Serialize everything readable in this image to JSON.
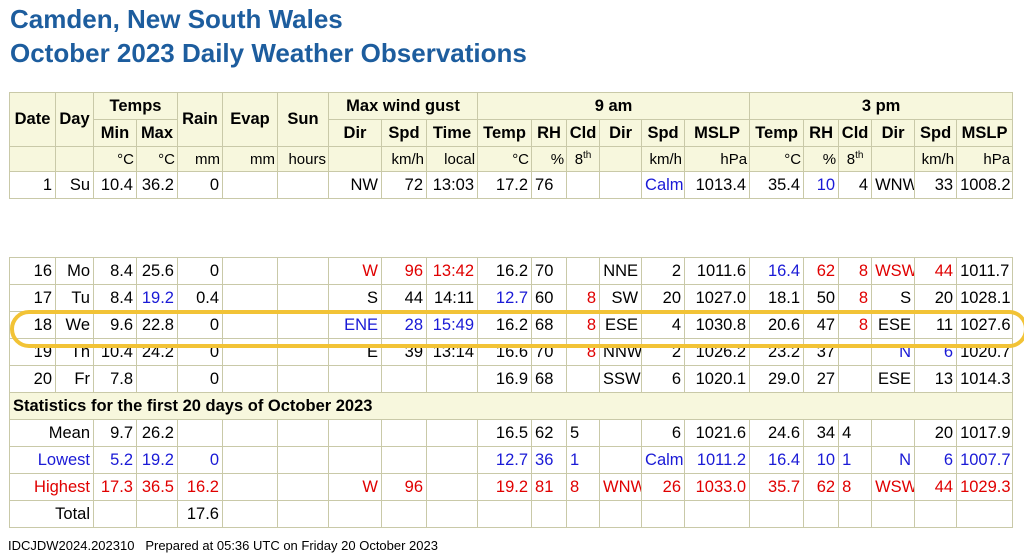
{
  "header": {
    "title_line1": "Camden, New South Wales",
    "title_line2": "October 2023 Daily Weather Observations"
  },
  "table": {
    "group_headers": [
      "Temps",
      "Rain",
      "Evap",
      "Sun",
      "Max wind gust",
      "9 am",
      "3 pm"
    ],
    "col_labels": {
      "date": "Date",
      "day": "Day",
      "min": "Min",
      "max": "Max",
      "dir": "Dir",
      "spd": "Spd",
      "time": "Time",
      "am_temp": "Temp",
      "am_rh": "RH",
      "am_cld": "Cld",
      "am_dir": "Dir",
      "am_spd": "Spd",
      "am_mslp": "MSLP",
      "pm_temp": "Temp",
      "pm_rh": "RH",
      "pm_cld": "Cld",
      "pm_dir": "Dir",
      "pm_spd": "Spd",
      "pm_mslp": "MSLP"
    },
    "units": {
      "min": "°C",
      "max": "°C",
      "rain": "mm",
      "evap": "mm",
      "sun": "hours",
      "gust_spd": "km/h",
      "gust_time": "local",
      "am_temp": "°C",
      "am_rh": "%",
      "am_cld": "8",
      "am_cld_sup": "th",
      "am_spd": "km/h",
      "am_mslp": "hPa",
      "pm_temp": "°C",
      "pm_rh": "%",
      "pm_cld": "8",
      "pm_cld_sup": "th",
      "pm_spd": "km/h",
      "pm_mslp": "hPa"
    },
    "rows": [
      {
        "date": "1",
        "day": "Su",
        "min": "10.4",
        "max": "36.2",
        "rain": "0",
        "evap": "",
        "sun": "",
        "gust_dir": "NW",
        "gust_spd": "72",
        "gust_time": "13:03",
        "am_temp": "17.2",
        "am_rh": "76",
        "am_cld": "",
        "am_dir": "",
        "am_spd": "Calm",
        "am_mslp": "1013.4",
        "pm_temp": "35.4",
        "pm_rh": "10",
        "pm_cld": "4",
        "pm_dir": "WNW",
        "pm_spd": "33",
        "pm_mslp": "1008.2"
      },
      {
        "date": "16",
        "day": "Mo",
        "min": "8.4",
        "max": "25.6",
        "rain": "0",
        "evap": "",
        "sun": "",
        "gust_dir": "W",
        "gust_spd": "96",
        "gust_time": "13:42",
        "am_temp": "16.2",
        "am_rh": "70",
        "am_cld": "",
        "am_dir": "NNE",
        "am_spd": "2",
        "am_mslp": "1011.6",
        "pm_temp": "16.4",
        "pm_rh": "62",
        "pm_cld": "8",
        "pm_dir": "WSW",
        "pm_spd": "44",
        "pm_mslp": "1011.7"
      },
      {
        "date": "17",
        "day": "Tu",
        "min": "8.4",
        "max": "19.2",
        "rain": "0.4",
        "evap": "",
        "sun": "",
        "gust_dir": "S",
        "gust_spd": "44",
        "gust_time": "14:11",
        "am_temp": "12.7",
        "am_rh": "60",
        "am_cld": "8",
        "am_dir": "SW",
        "am_spd": "20",
        "am_mslp": "1027.0",
        "pm_temp": "18.1",
        "pm_rh": "50",
        "pm_cld": "8",
        "pm_dir": "S",
        "pm_spd": "20",
        "pm_mslp": "1028.1"
      },
      {
        "date": "18",
        "day": "We",
        "min": "9.6",
        "max": "22.8",
        "rain": "0",
        "evap": "",
        "sun": "",
        "gust_dir": "ENE",
        "gust_spd": "28",
        "gust_time": "15:49",
        "am_temp": "16.2",
        "am_rh": "68",
        "am_cld": "8",
        "am_dir": "ESE",
        "am_spd": "4",
        "am_mslp": "1030.8",
        "pm_temp": "20.6",
        "pm_rh": "47",
        "pm_cld": "8",
        "pm_dir": "ESE",
        "pm_spd": "11",
        "pm_mslp": "1027.6"
      },
      {
        "date": "19",
        "day": "Th",
        "min": "10.4",
        "max": "24.2",
        "rain": "0",
        "evap": "",
        "sun": "",
        "gust_dir": "E",
        "gust_spd": "39",
        "gust_time": "13:14",
        "am_temp": "16.6",
        "am_rh": "70",
        "am_cld": "8",
        "am_dir": "NNW",
        "am_spd": "2",
        "am_mslp": "1026.2",
        "pm_temp": "23.2",
        "pm_rh": "37",
        "pm_cld": "",
        "pm_dir": "N",
        "pm_spd": "6",
        "pm_mslp": "1020.7"
      },
      {
        "date": "20",
        "day": "Fr",
        "min": "7.8",
        "max": "",
        "rain": "0",
        "evap": "",
        "sun": "",
        "gust_dir": "",
        "gust_spd": "",
        "gust_time": "",
        "am_temp": "16.9",
        "am_rh": "68",
        "am_cld": "",
        "am_dir": "SSW",
        "am_spd": "6",
        "am_mslp": "1020.1",
        "pm_temp": "29.0",
        "pm_rh": "27",
        "pm_cld": "",
        "pm_dir": "ESE",
        "pm_spd": "13",
        "pm_mslp": "1014.3"
      }
    ],
    "stats_title": "Statistics for the first 20 days of October 2023",
    "stats": [
      {
        "label": "Mean",
        "min": "9.7",
        "max": "26.2",
        "rain": "",
        "gust_dir": "",
        "gust_spd": "",
        "am_temp": "16.5",
        "am_rh": "62",
        "am_cld": "5",
        "am_dir": "",
        "am_spd": "6",
        "am_mslp": "1021.6",
        "pm_temp": "24.6",
        "pm_rh": "34",
        "pm_cld": "4",
        "pm_dir": "",
        "pm_spd": "20",
        "pm_mslp": "1017.9"
      },
      {
        "label": "Lowest",
        "min": "5.2",
        "max": "19.2",
        "rain": "0",
        "gust_dir": "",
        "gust_spd": "",
        "am_temp": "12.7",
        "am_rh": "36",
        "am_cld": "1",
        "am_dir": "",
        "am_spd": "Calm",
        "am_mslp": "1011.2",
        "pm_temp": "16.4",
        "pm_rh": "10",
        "pm_cld": "1",
        "pm_dir": "N",
        "pm_spd": "6",
        "pm_mslp": "1007.7"
      },
      {
        "label": "Highest",
        "min": "17.3",
        "max": "36.5",
        "rain": "16.2",
        "gust_dir": "W",
        "gust_spd": "96",
        "am_temp": "19.2",
        "am_rh": "81",
        "am_cld": "8",
        "am_dir": "WNW",
        "am_spd": "26",
        "am_mslp": "1033.0",
        "pm_temp": "35.7",
        "pm_rh": "62",
        "pm_cld": "8",
        "pm_dir": "WSW",
        "pm_spd": "44",
        "pm_mslp": "1029.3"
      },
      {
        "label": "Total",
        "min": "",
        "max": "",
        "rain": "17.6",
        "gust_dir": "",
        "gust_spd": "",
        "am_temp": "",
        "am_rh": "",
        "am_cld": "",
        "am_dir": "",
        "am_spd": "",
        "am_mslp": "",
        "pm_temp": "",
        "pm_rh": "",
        "pm_cld": "",
        "pm_dir": "",
        "pm_spd": "",
        "pm_mslp": ""
      }
    ]
  },
  "footer": {
    "product_code": "IDCJDW2024.202310",
    "prepared": "Prepared at 05:36 UTC on Friday 20 October 2023"
  },
  "colors": {
    "title": "#1d5d9e",
    "header_bg": "#f7f7dd",
    "highlight": "#f2c336",
    "low": "#1a1ad6",
    "high": "#e00000"
  }
}
